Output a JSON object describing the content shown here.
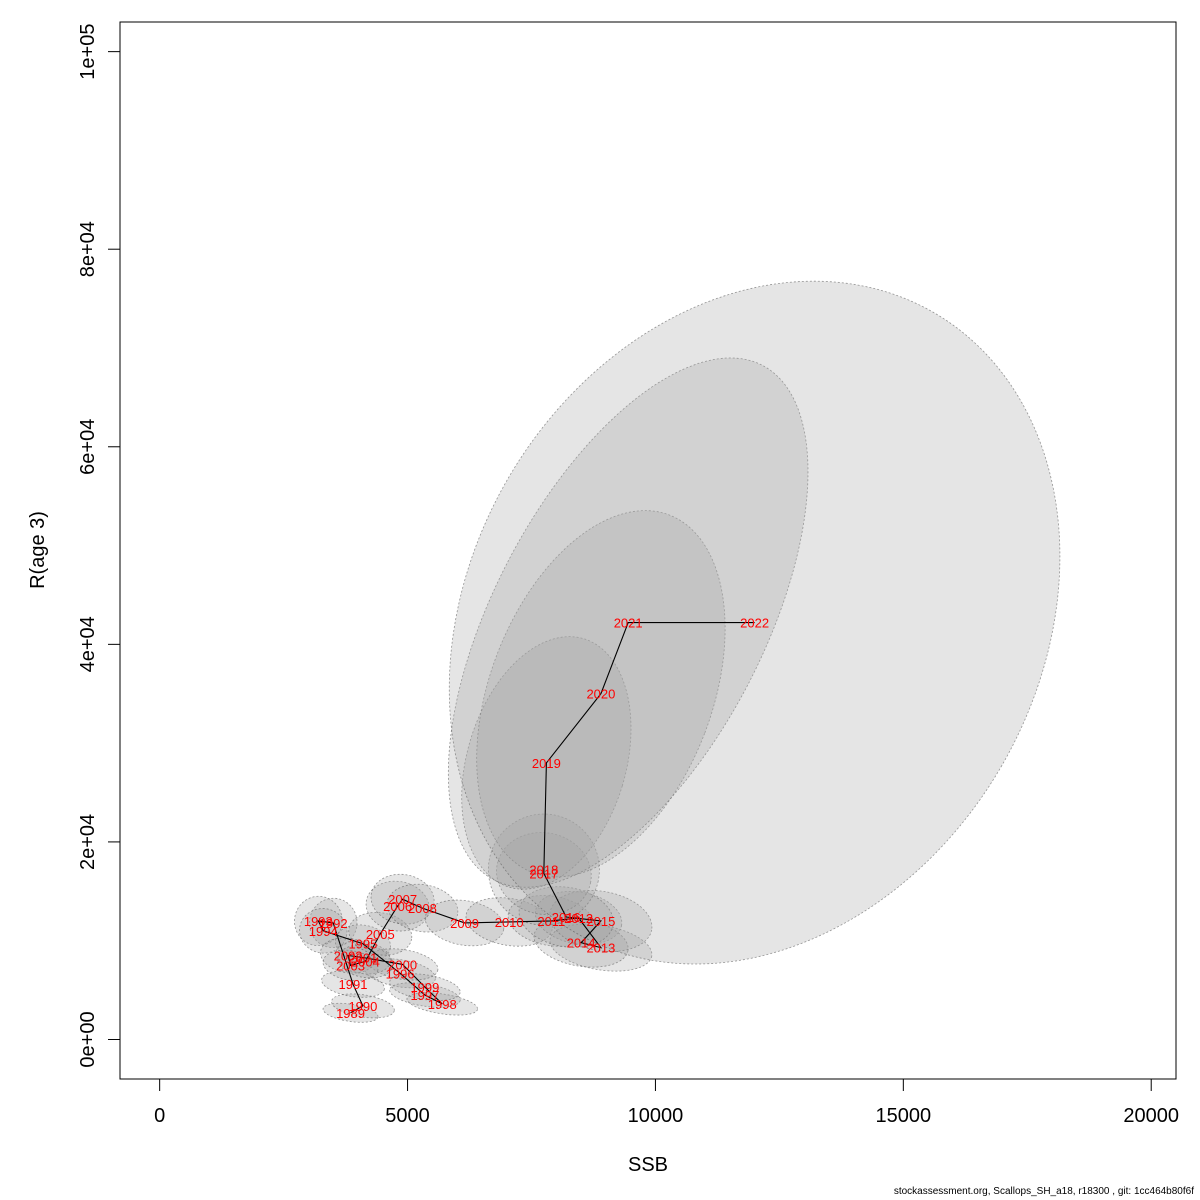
{
  "chart_data": {
    "type": "scatter",
    "xlabel": "SSB",
    "ylabel": "R(age 3)",
    "xlim": [
      -800,
      20500
    ],
    "ylim": [
      -4000,
      103000
    ],
    "x_ticks": [
      0,
      5000,
      10000,
      15000,
      20000
    ],
    "x_tick_labels": [
      "0",
      "5000",
      "10000",
      "15000",
      "20000"
    ],
    "y_ticks": [
      0,
      20000,
      40000,
      60000,
      80000,
      100000
    ],
    "y_tick_labels": [
      "0e+00",
      "2e+04",
      "4e+04",
      "6e+04",
      "8e+04",
      "1e+05"
    ],
    "grid": false,
    "connected_path": true,
    "ellipse_fill": "#a0a0a0",
    "ellipse_fill_opacity": 0.28,
    "line_color": "#000000",
    "label_color": "#ff0000",
    "points": [
      {
        "year": "1989",
        "x": 3850,
        "y": 2700,
        "sx": 350,
        "sy": 700
      },
      {
        "year": "1990",
        "x": 4100,
        "y": 3400,
        "sx": 400,
        "sy": 900
      },
      {
        "year": "1991",
        "x": 3900,
        "y": 5600,
        "sx": 400,
        "sy": 1000
      },
      {
        "year": "1992",
        "x": 3500,
        "y": 11800,
        "sx": 300,
        "sy": 2000
      },
      {
        "year": "1993",
        "x": 3200,
        "y": 12000,
        "sx": 300,
        "sy": 2000
      },
      {
        "year": "1994",
        "x": 3300,
        "y": 11000,
        "sx": 300,
        "sy": 1800
      },
      {
        "year": "1995",
        "x": 4100,
        "y": 9700,
        "sx": 350,
        "sy": 1500
      },
      {
        "year": "1996",
        "x": 4850,
        "y": 6700,
        "sx": 450,
        "sy": 1100
      },
      {
        "year": "1997",
        "x": 5350,
        "y": 4500,
        "sx": 450,
        "sy": 900
      },
      {
        "year": "1998",
        "x": 5700,
        "y": 3600,
        "sx": 450,
        "sy": 800
      },
      {
        "year": "1999",
        "x": 5350,
        "y": 5300,
        "sx": 450,
        "sy": 1000
      },
      {
        "year": "2000",
        "x": 4900,
        "y": 7600,
        "sx": 450,
        "sy": 1200
      },
      {
        "year": "2001",
        "x": 4100,
        "y": 8300,
        "sx": 350,
        "sy": 1300
      },
      {
        "year": "2002",
        "x": 3800,
        "y": 8500,
        "sx": 350,
        "sy": 1400
      },
      {
        "year": "2003",
        "x": 3850,
        "y": 7500,
        "sx": 350,
        "sy": 1200
      },
      {
        "year": "2004",
        "x": 4150,
        "y": 7900,
        "sx": 350,
        "sy": 1300
      },
      {
        "year": "2005",
        "x": 4450,
        "y": 10700,
        "sx": 400,
        "sy": 1700
      },
      {
        "year": "2006",
        "x": 4800,
        "y": 13500,
        "sx": 400,
        "sy": 2000
      },
      {
        "year": "2007",
        "x": 4900,
        "y": 14200,
        "sx": 400,
        "sy": 2000
      },
      {
        "year": "2008",
        "x": 5300,
        "y": 13300,
        "sx": 450,
        "sy": 1900
      },
      {
        "year": "2009",
        "x": 6150,
        "y": 11800,
        "sx": 500,
        "sy": 1800
      },
      {
        "year": "2010",
        "x": 7050,
        "y": 11900,
        "sx": 550,
        "sy": 1900
      },
      {
        "year": "2011",
        "x": 7900,
        "y": 12000,
        "sx": 550,
        "sy": 2000
      },
      {
        "year": "2012",
        "x": 8450,
        "y": 12300,
        "sx": 550,
        "sy": 2100
      },
      {
        "year": "2013",
        "x": 8900,
        "y": 9300,
        "sx": 650,
        "sy": 1800
      },
      {
        "year": "2014",
        "x": 8500,
        "y": 9800,
        "sx": 600,
        "sy": 1900
      },
      {
        "year": "2015",
        "x": 8900,
        "y": 12000,
        "sx": 650,
        "sy": 2400
      },
      {
        "year": "2016",
        "x": 8200,
        "y": 12400,
        "sx": 600,
        "sy": 2400
      },
      {
        "year": "2017",
        "x": 7750,
        "y": 16800,
        "sx": 600,
        "sy": 3300
      },
      {
        "year": "2018",
        "x": 7750,
        "y": 17200,
        "sx": 700,
        "sy": 4500
      },
      {
        "year": "2019",
        "x": 7800,
        "y": 28000,
        "sx": 1000,
        "sy": 10500
      },
      {
        "year": "2020",
        "x": 8900,
        "y": 35000,
        "sx": 1400,
        "sy": 15500
      },
      {
        "year": "2021",
        "x": 9450,
        "y": 42200,
        "sx": 1700,
        "sy": 23500
      },
      {
        "year": "2022",
        "x": 12000,
        "y": 42200,
        "sx": 3600,
        "sy": 29000
      }
    ]
  },
  "footer": "stockassessment.org, Scallops_SH_a18, r18300 , git: 1cc464b80f6f"
}
